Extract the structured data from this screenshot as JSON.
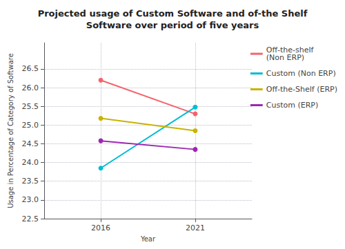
{
  "chart_data": {
    "type": "line",
    "title": "Projected usage of Custom Software and of-the Shelf\nSoftware over period of five years",
    "x_label": "Year",
    "y_label": "Usage in Percentage of Category of Software",
    "x": [
      2016,
      2021
    ],
    "xlim": [
      2013.0,
      2024.0
    ],
    "xticks": [
      2016,
      2021
    ],
    "ylim": [
      22.5,
      27.2
    ],
    "yticks": [
      22.5,
      {
        "value": 23.0,
        "label": "23.0"
      },
      23.5,
      {
        "value": 24.0,
        "label": "24.0"
      },
      24.5,
      {
        "value": 25.0,
        "label": "25.0"
      },
      25.5,
      {
        "value": 26.0,
        "label": "26.0"
      },
      26.5
    ],
    "grid": true,
    "legend": "right",
    "marker": "circle",
    "series": [
      {
        "name": "Off-the-shelf\n(Non ERP)",
        "color": "#f4636c",
        "values": [
          26.2,
          25.3
        ]
      },
      {
        "name": "Custom (Non ERP)",
        "color": "#00bcd4",
        "values": [
          23.85,
          25.48
        ]
      },
      {
        "name": "Off-the-Shelf (ERP)",
        "color": "#c8b400",
        "values": [
          25.18,
          24.85
        ]
      },
      {
        "name": "Custom (ERP)",
        "color": "#9c27b0",
        "values": [
          24.58,
          24.35
        ]
      }
    ]
  }
}
